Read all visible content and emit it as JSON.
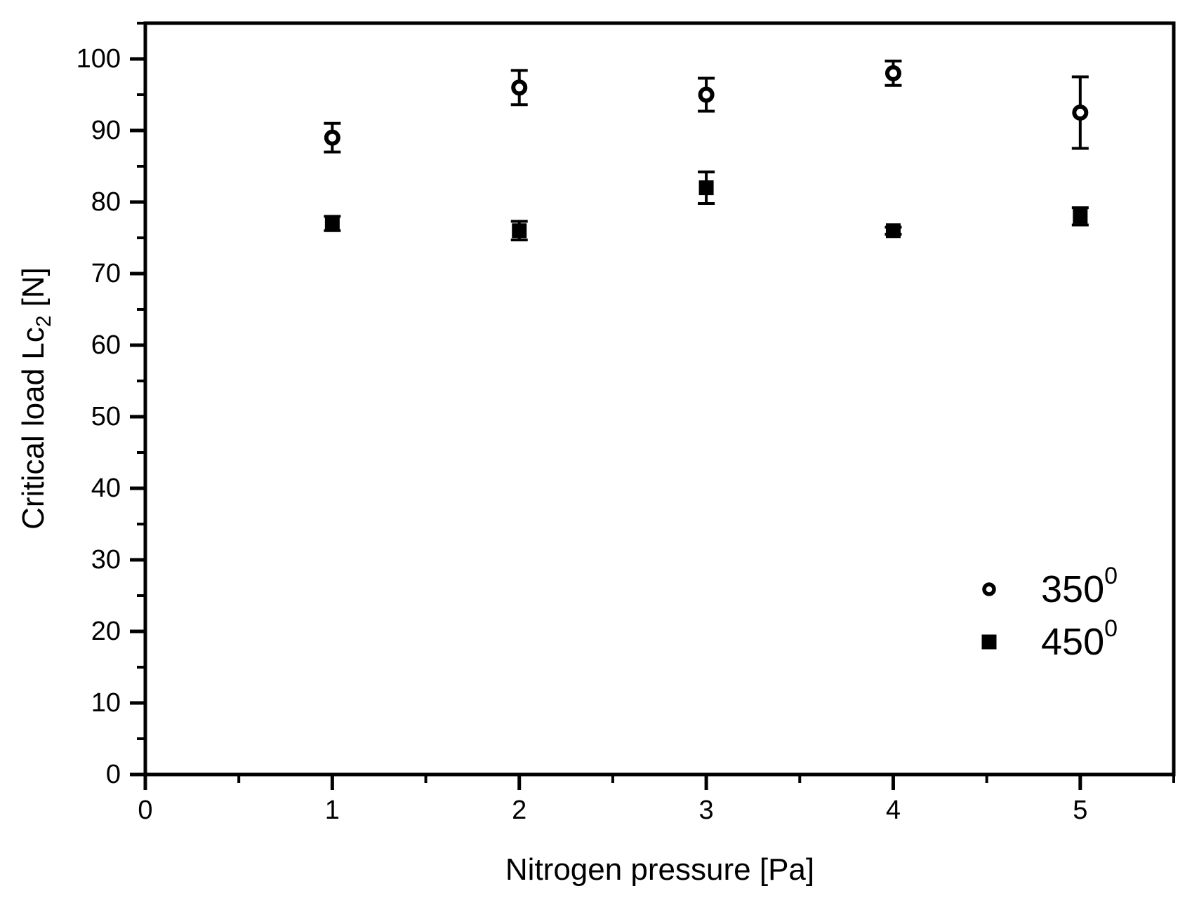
{
  "figure": {
    "background": "#ffffff",
    "foreground": "#000000"
  },
  "chart_data": {
    "type": "scatter",
    "title": "",
    "xlabel": "Nitrogen pressure [Pa]",
    "ylabel": {
      "text": "Critical load Lc",
      "subscript": "2",
      "suffix": " [N]"
    },
    "xlim": [
      0,
      5.5
    ],
    "ylim": [
      0,
      105
    ],
    "x_major_ticks": [
      0,
      1,
      2,
      3,
      4,
      5
    ],
    "x_minor_ticks": [
      0.5,
      1.5,
      2.5,
      3.5,
      4.5,
      5.5
    ],
    "y_major_ticks": [
      0,
      10,
      20,
      30,
      40,
      50,
      60,
      70,
      80,
      90,
      100
    ],
    "y_minor_ticks": [
      5,
      15,
      25,
      35,
      45,
      55,
      65,
      75,
      85,
      95,
      105
    ],
    "grid": false,
    "legend": {
      "position": "lower-right",
      "frame": false,
      "entries": [
        {
          "label": "350",
          "superscript": "0",
          "marker": "open-circle"
        },
        {
          "label": "450",
          "superscript": "0",
          "marker": "filled-square"
        }
      ]
    },
    "series": [
      {
        "name": "350",
        "marker": "open-circle",
        "x": [
          1,
          2,
          3,
          4,
          5
        ],
        "y": [
          89,
          96,
          95,
          98,
          92.5
        ],
        "yerr": [
          2,
          2.4,
          2.3,
          1.7,
          5
        ]
      },
      {
        "name": "450",
        "marker": "filled-square",
        "x": [
          1,
          2,
          3,
          4,
          5
        ],
        "y": [
          77,
          76,
          82,
          76,
          78
        ],
        "yerr": [
          1,
          1.3,
          2.2,
          0.5,
          1.2
        ]
      }
    ],
    "colors": {
      "foreground": "#000000",
      "background": "#ffffff"
    }
  }
}
